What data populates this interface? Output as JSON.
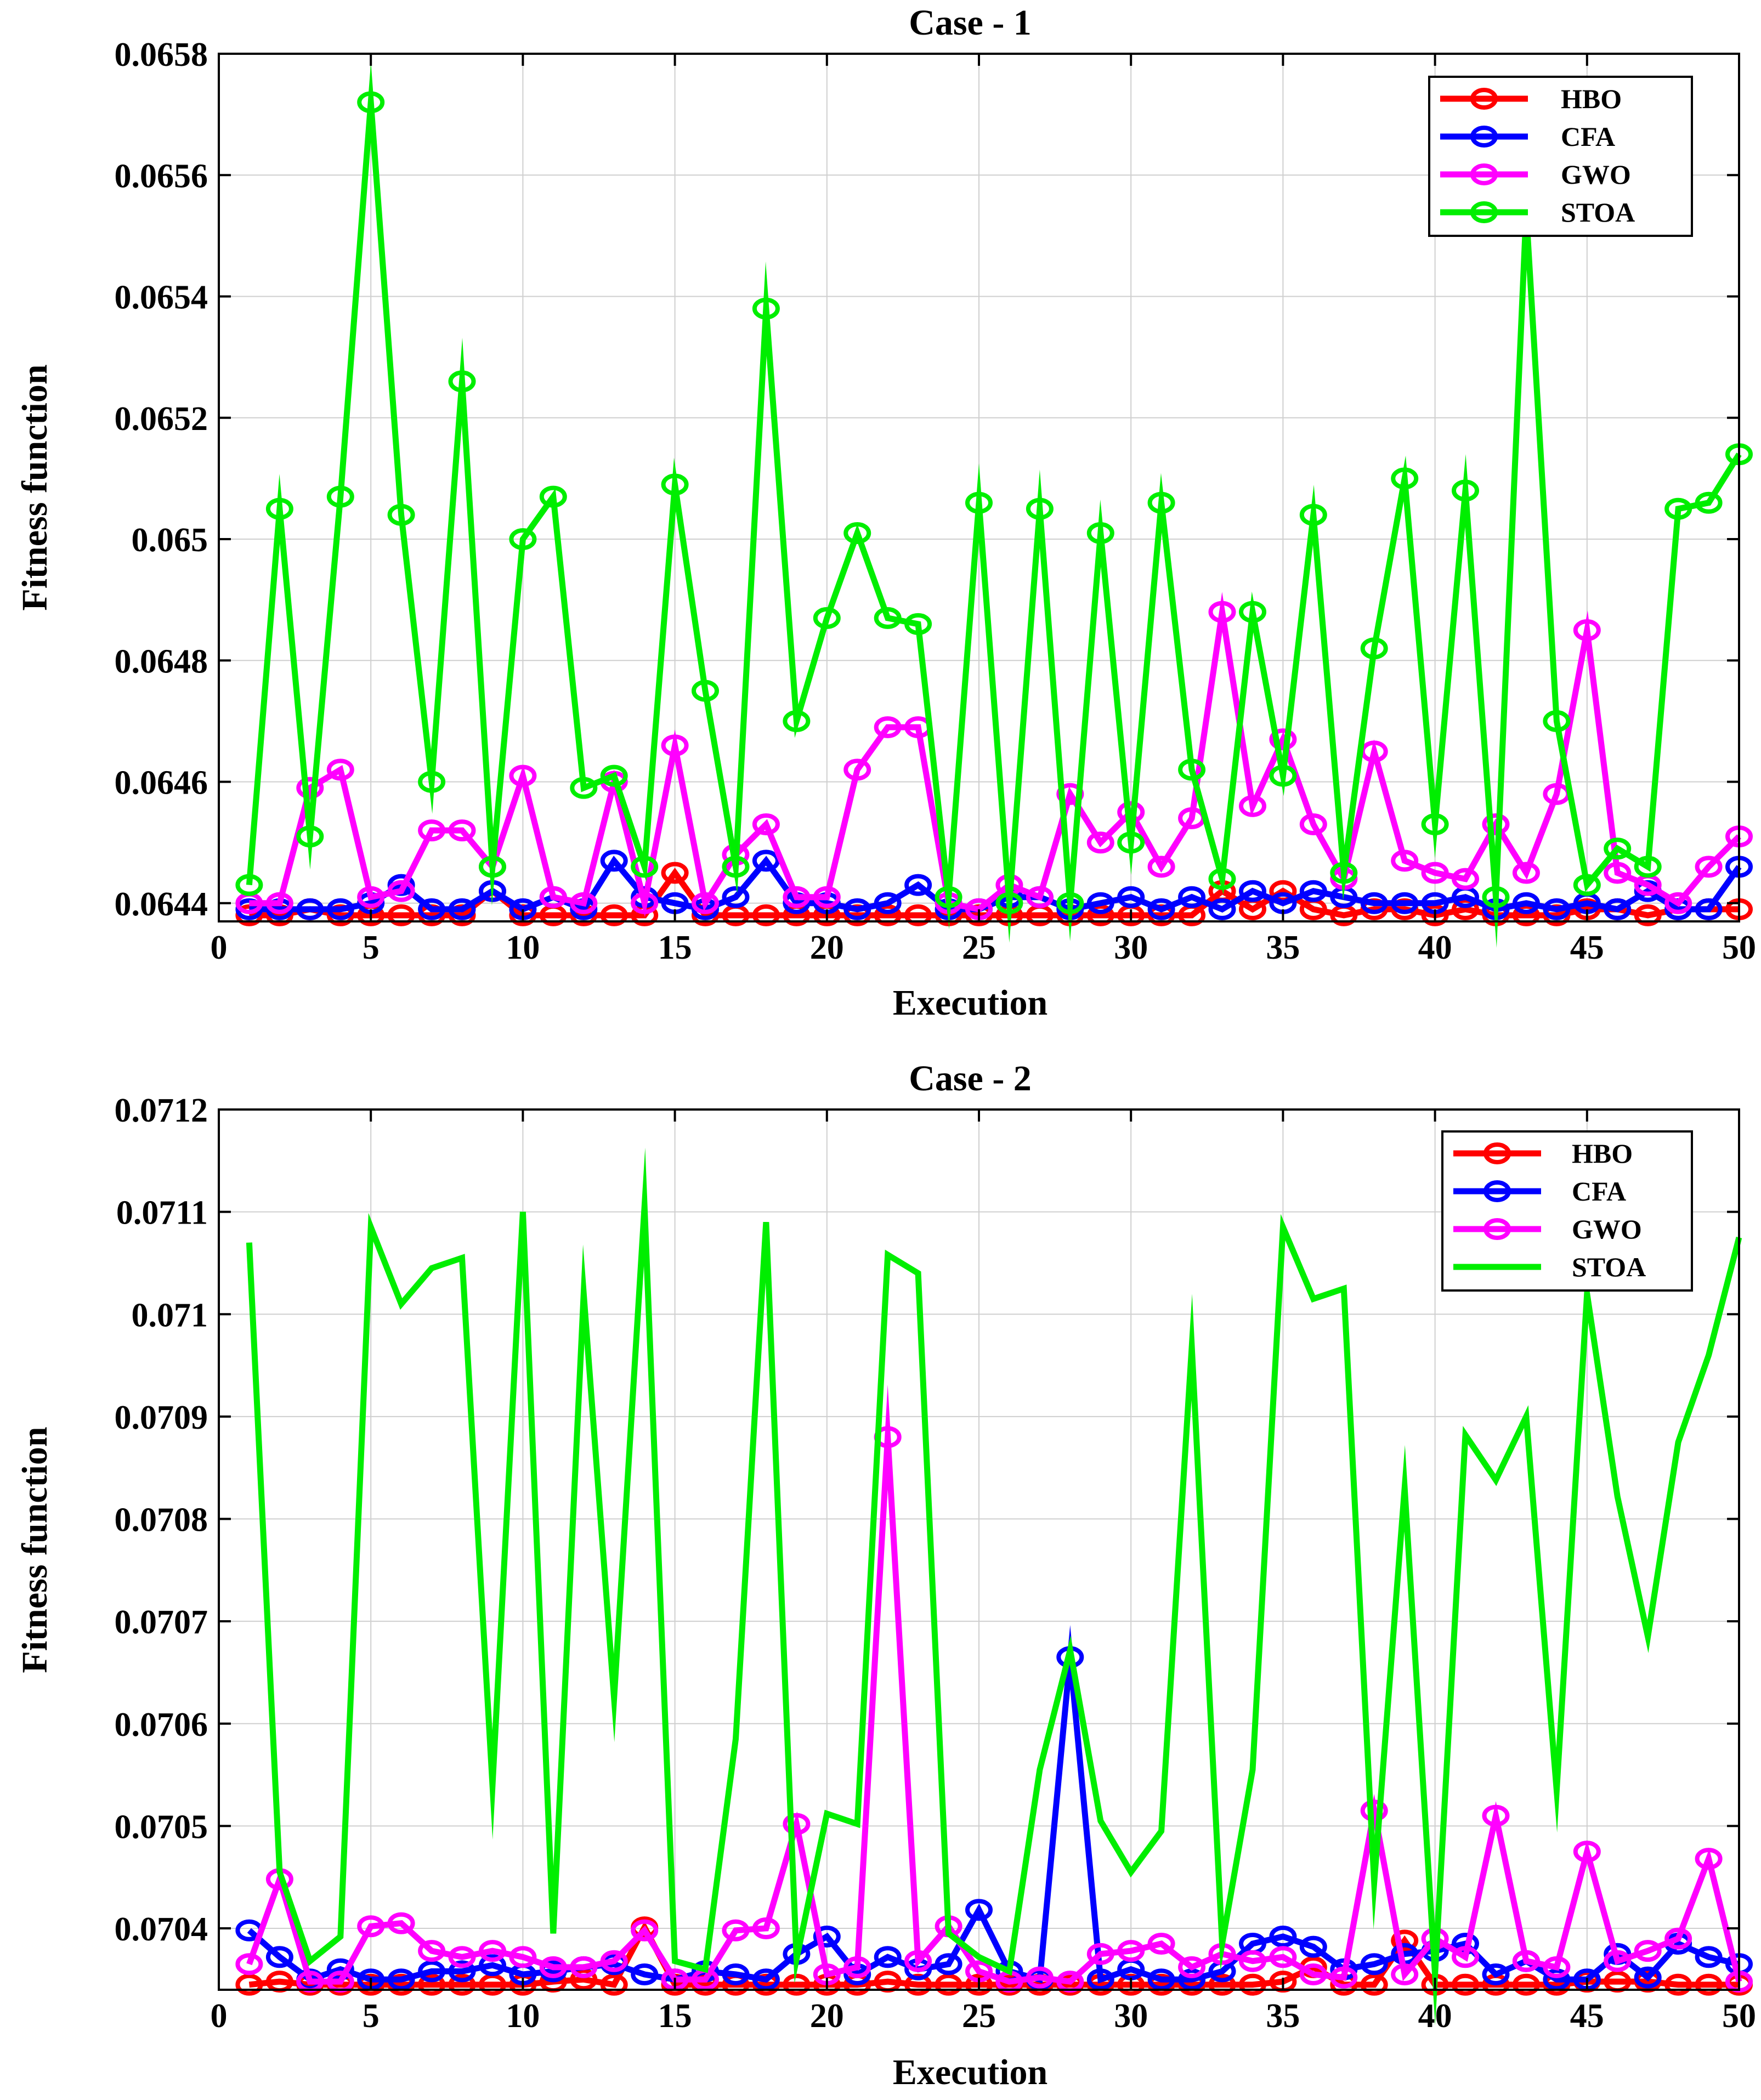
{
  "chart_data": [
    {
      "type": "line",
      "title": "Case - 1",
      "xlabel": "Execution",
      "ylabel": "Fitness function",
      "xlim": [
        0,
        50
      ],
      "ylim": [
        0.06437,
        0.0658
      ],
      "grid": true,
      "legend_position": "top-right",
      "x_ticks": [
        0,
        5,
        10,
        15,
        20,
        25,
        30,
        35,
        40,
        45,
        50
      ],
      "x_tick_labels": [
        "0",
        "5",
        "10",
        "15",
        "20",
        "25",
        "30",
        "35",
        "40",
        "45",
        "50"
      ],
      "y_ticks": [
        0.0644,
        0.0646,
        0.0648,
        0.065,
        0.0652,
        0.0654,
        0.0656,
        0.0658
      ],
      "y_tick_labels": [
        "0.0644",
        "0.0646",
        "0.0648",
        "0.065",
        "0.0652",
        "0.0654",
        "0.0656",
        "0.0658"
      ],
      "x": [
        1,
        2,
        3,
        4,
        5,
        6,
        7,
        8,
        9,
        10,
        11,
        12,
        13,
        14,
        15,
        16,
        17,
        18,
        19,
        20,
        21,
        22,
        23,
        24,
        25,
        26,
        27,
        28,
        29,
        30,
        31,
        32,
        33,
        34,
        35,
        36,
        37,
        38,
        39,
        40,
        41,
        42,
        43,
        44,
        45,
        46,
        47,
        48,
        49,
        50
      ],
      "series": [
        {
          "name": "HBO",
          "color": "#ff0000",
          "markers": true,
          "values": [
            0.06438,
            0.06438,
            0.06439,
            0.06438,
            0.06438,
            0.06438,
            0.06438,
            0.06438,
            0.06442,
            0.06438,
            0.06438,
            0.06438,
            0.06438,
            0.06438,
            0.06445,
            0.06438,
            0.06438,
            0.06438,
            0.06438,
            0.06438,
            0.06438,
            0.06438,
            0.06438,
            0.06438,
            0.06438,
            0.06438,
            0.06438,
            0.06438,
            0.06438,
            0.06438,
            0.06438,
            0.06438,
            0.06442,
            0.06439,
            0.06442,
            0.06439,
            0.06438,
            0.06439,
            0.06439,
            0.06438,
            0.06439,
            0.06438,
            0.06438,
            0.06438,
            0.06439,
            0.06439,
            0.06438,
            0.06439,
            0.06439,
            0.06439
          ]
        },
        {
          "name": "CFA",
          "color": "#0000ff",
          "markers": true,
          "values": [
            0.06439,
            0.06439,
            0.06439,
            0.06439,
            0.0644,
            0.06443,
            0.06439,
            0.06439,
            0.06442,
            0.06439,
            0.06441,
            0.06439,
            0.06447,
            0.06441,
            0.0644,
            0.06439,
            0.06441,
            0.06447,
            0.0644,
            0.0644,
            0.06439,
            0.0644,
            0.06443,
            0.06439,
            0.06439,
            0.06441,
            0.06441,
            0.06439,
            0.0644,
            0.06441,
            0.06439,
            0.06441,
            0.06439,
            0.06442,
            0.0644,
            0.06442,
            0.06441,
            0.0644,
            0.0644,
            0.0644,
            0.06441,
            0.06439,
            0.0644,
            0.06439,
            0.0644,
            0.06439,
            0.06442,
            0.06439,
            0.06439,
            0.06446
          ]
        },
        {
          "name": "GWO",
          "color": "#ff00ff",
          "markers": true,
          "values": [
            0.0644,
            0.0644,
            0.06459,
            0.06462,
            0.06441,
            0.06442,
            0.06452,
            0.06452,
            0.06446,
            0.06461,
            0.06441,
            0.0644,
            0.0646,
            0.0644,
            0.06466,
            0.0644,
            0.06448,
            0.06453,
            0.06441,
            0.06441,
            0.06462,
            0.06469,
            0.06469,
            0.0644,
            0.06439,
            0.06443,
            0.06441,
            0.06458,
            0.0645,
            0.06455,
            0.06446,
            0.06454,
            0.06488,
            0.06456,
            0.06467,
            0.06453,
            0.06444,
            0.06465,
            0.06447,
            0.06445,
            0.06444,
            0.06453,
            0.06445,
            0.06458,
            0.06485,
            0.06445,
            0.06443,
            0.0644,
            0.06446,
            0.06451
          ]
        },
        {
          "name": "STOA",
          "color": "#00ee00",
          "markers": true,
          "values": [
            0.06443,
            0.06505,
            0.06451,
            0.06507,
            0.06572,
            0.06504,
            0.0646,
            0.06526,
            0.06446,
            0.065,
            0.06507,
            0.06459,
            0.06461,
            0.06446,
            0.06509,
            0.06475,
            0.06446,
            0.06538,
            0.0647,
            0.06487,
            0.06501,
            0.06487,
            0.06486,
            0.06441,
            0.06506,
            0.0644,
            0.06505,
            0.0644,
            0.06501,
            0.0645,
            0.06506,
            0.06462,
            0.06444,
            0.06488,
            0.06461,
            0.06504,
            0.06445,
            0.06482,
            0.0651,
            0.06453,
            0.06508,
            0.06441,
            0.06554,
            0.0647,
            0.06443,
            0.06449,
            0.06446,
            0.06505,
            0.06506,
            0.06514
          ]
        }
      ]
    },
    {
      "type": "line",
      "title": "Case - 2",
      "xlabel": "Execution",
      "ylabel": "Fitness function",
      "xlim": [
        0,
        50
      ],
      "ylim": [
        0.07034,
        0.0712
      ],
      "grid": true,
      "legend_position": "top-right",
      "x_ticks": [
        0,
        5,
        10,
        15,
        20,
        25,
        30,
        35,
        40,
        45,
        50
      ],
      "x_tick_labels": [
        "0",
        "5",
        "10",
        "15",
        "20",
        "25",
        "30",
        "35",
        "40",
        "45",
        "50"
      ],
      "y_ticks": [
        0.0704,
        0.0705,
        0.0706,
        0.0707,
        0.0708,
        0.0709,
        0.071,
        0.0711,
        0.0712
      ],
      "y_tick_labels": [
        "0.0704",
        "0.0705",
        "0.0706",
        "0.0707",
        "0.0708",
        "0.0709",
        "0.071",
        "0.0711",
        "0.0712"
      ],
      "x": [
        1,
        2,
        3,
        4,
        5,
        6,
        7,
        8,
        9,
        10,
        11,
        12,
        13,
        14,
        15,
        16,
        17,
        18,
        19,
        20,
        21,
        22,
        23,
        24,
        25,
        26,
        27,
        28,
        29,
        30,
        31,
        32,
        33,
        34,
        35,
        36,
        37,
        38,
        39,
        40,
        41,
        42,
        43,
        44,
        45,
        46,
        47,
        48,
        49,
        50
      ],
      "series": [
        {
          "name": "HBO",
          "color": "#ff0000",
          "markers": true,
          "values": [
            0.070345,
            0.070348,
            0.070345,
            0.070345,
            0.070345,
            0.070345,
            0.070345,
            0.070345,
            0.070345,
            0.070345,
            0.070348,
            0.07035,
            0.070345,
            0.070401,
            0.070345,
            0.070345,
            0.070345,
            0.070345,
            0.070345,
            0.070345,
            0.070345,
            0.070348,
            0.070345,
            0.070345,
            0.070345,
            0.070345,
            0.070345,
            0.070345,
            0.070345,
            0.070345,
            0.070345,
            0.070345,
            0.070345,
            0.070345,
            0.070348,
            0.070362,
            0.070345,
            0.070345,
            0.070388,
            0.070345,
            0.070345,
            0.070345,
            0.070345,
            0.070345,
            0.070348,
            0.070348,
            0.070348,
            0.070345,
            0.070345,
            0.070345
          ]
        },
        {
          "name": "CFA",
          "color": "#0000ff",
          "markers": true,
          "values": [
            0.070398,
            0.070372,
            0.07035,
            0.07036,
            0.07035,
            0.07035,
            0.070358,
            0.070358,
            0.070364,
            0.070355,
            0.070358,
            0.070362,
            0.070365,
            0.070355,
            0.07035,
            0.070358,
            0.070355,
            0.07035,
            0.070375,
            0.070392,
            0.070355,
            0.070372,
            0.07036,
            0.070365,
            0.070418,
            0.070358,
            0.07035,
            0.070665,
            0.07035,
            0.07036,
            0.07035,
            0.07035,
            0.070358,
            0.070385,
            0.070392,
            0.070382,
            0.07036,
            0.070365,
            0.070375,
            0.070378,
            0.070385,
            0.070355,
            0.070368,
            0.07035,
            0.07035,
            0.070375,
            0.070352,
            0.070385,
            0.070372,
            0.070365
          ]
        },
        {
          "name": "GWO",
          "color": "#ff00ff",
          "markers": true,
          "values": [
            0.070365,
            0.070448,
            0.070348,
            0.070348,
            0.070402,
            0.070405,
            0.070378,
            0.070372,
            0.070378,
            0.070372,
            0.070362,
            0.070362,
            0.070368,
            0.070398,
            0.07035,
            0.07035,
            0.070398,
            0.0704,
            0.070502,
            0.070355,
            0.070362,
            0.07088,
            0.070368,
            0.070402,
            0.070358,
            0.070348,
            0.070352,
            0.070348,
            0.070375,
            0.070378,
            0.070385,
            0.070362,
            0.070375,
            0.070368,
            0.070372,
            0.070355,
            0.070352,
            0.070515,
            0.070355,
            0.07039,
            0.070372,
            0.07051,
            0.070368,
            0.070362,
            0.070475,
            0.070368,
            0.070378,
            0.07039,
            0.070468,
            0.070348
          ]
        },
        {
          "name": "STOA",
          "color": "#00ee00",
          "markers": false,
          "values": [
            0.07107,
            0.070455,
            0.070368,
            0.070392,
            0.071085,
            0.07101,
            0.071045,
            0.071055,
            0.07054,
            0.0711,
            0.070395,
            0.07102,
            0.070625,
            0.071105,
            0.070368,
            0.07036,
            0.070585,
            0.07109,
            0.07037,
            0.070512,
            0.070502,
            0.071058,
            0.07104,
            0.070395,
            0.070372,
            0.070358,
            0.070555,
            0.070672,
            0.070505,
            0.070455,
            0.070495,
            0.070968,
            0.070385,
            0.070555,
            0.071085,
            0.071015,
            0.071025,
            0.070445,
            0.07083,
            0.070355,
            0.070882,
            0.070838,
            0.0709,
            0.070535,
            0.07102,
            0.070822,
            0.070685,
            0.070875,
            0.07096,
            0.071075
          ]
        }
      ]
    }
  ]
}
